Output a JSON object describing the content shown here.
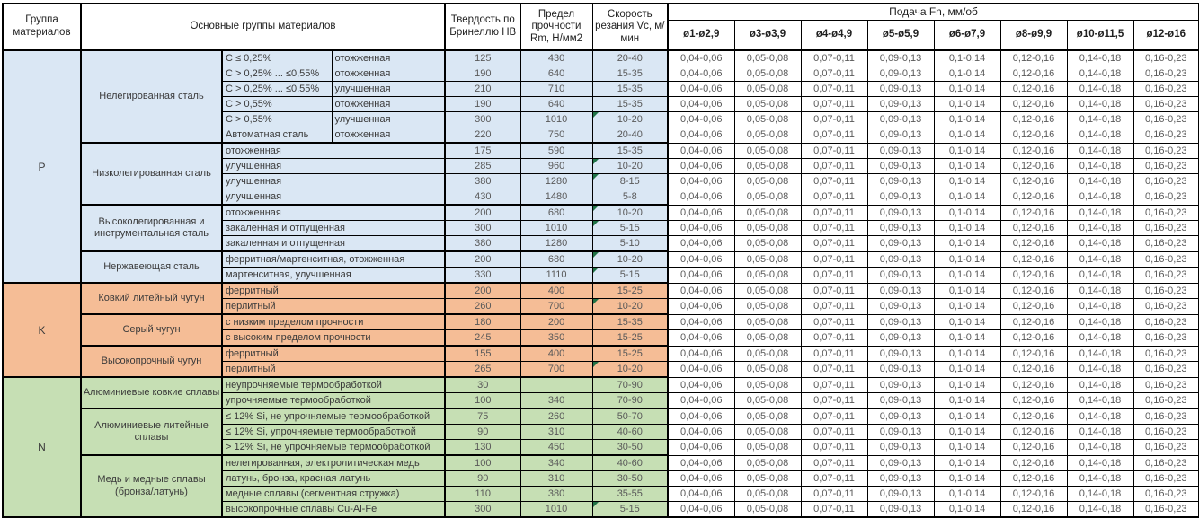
{
  "table": {
    "header": {
      "col_group": "Группа материалов",
      "col_main": "Основные группы материалов",
      "col_hb": "Твердость по Бринеллю HB",
      "col_rm": "Предел прочности Rm, Н/мм2",
      "col_vc": "Скорость резания Vc, м/мин",
      "feed_title": "Подача Fn, мм/об",
      "feed_cols": [
        "ø1-ø2,9",
        "ø3-ø3,9",
        "ø4-ø4,9",
        "ø5-ø5,9",
        "ø6-ø7,9",
        "ø8-ø9,9",
        "ø10-ø11,5",
        "ø12-ø16"
      ]
    },
    "feed_values": [
      "0,04-0,06",
      "0,05-0,08",
      "0,07-0,11",
      "0,09-0,13",
      "0,1-0,14",
      "0,12-0,16",
      "0,14-0,18",
      "0,16-0,23"
    ],
    "colors": {
      "group_p": "#dae7f4",
      "group_k": "#f5bd96",
      "group_n": "#c6dfb4",
      "marker": "#217346"
    },
    "groups": [
      {
        "code": "P",
        "color_key": "group_p",
        "subgroups": [
          {
            "name": "Нелегированная сталь",
            "rows": [
              {
                "a": "C ≤ 0,25%",
                "b": "отожженная",
                "hb": "125",
                "rm": "430",
                "vc": "20-40",
                "marker": false
              },
              {
                "a": "C > 0,25% ... ≤0,55%",
                "b": "отожженная",
                "hb": "190",
                "rm": "640",
                "vc": "15-35",
                "marker": false
              },
              {
                "a": "C > 0,25% ... ≤0,55%",
                "b": "улучшенная",
                "hb": "210",
                "rm": "710",
                "vc": "15-35",
                "marker": false
              },
              {
                "a": "C > 0,55%",
                "b": "отожженная",
                "hb": "190",
                "rm": "640",
                "vc": "15-35",
                "marker": false
              },
              {
                "a": "C > 0,55%",
                "b": "улучшенная",
                "hb": "300",
                "rm": "1010",
                "vc": "10-20",
                "marker": true
              },
              {
                "a": "Автоматная сталь",
                "b": "отожженная",
                "hb": "220",
                "rm": "750",
                "vc": "20-40",
                "marker": false
              }
            ]
          },
          {
            "name": "Низколегированная сталь",
            "rows": [
              {
                "a": "отожженная",
                "b": null,
                "hb": "175",
                "rm": "590",
                "vc": "15-35",
                "marker": false
              },
              {
                "a": "улучшенная",
                "b": null,
                "hb": "285",
                "rm": "960",
                "vc": "10-20",
                "marker": true
              },
              {
                "a": "улучшенная",
                "b": null,
                "hb": "380",
                "rm": "1280",
                "vc": "8-15",
                "marker": true
              },
              {
                "a": "улучшенная",
                "b": null,
                "hb": "430",
                "rm": "1480",
                "vc": "5-8",
                "marker": false
              }
            ]
          },
          {
            "name": "Высоколегированная и инструментальная сталь",
            "rows": [
              {
                "a": "отожженная",
                "b": null,
                "hb": "200",
                "rm": "680",
                "vc": "10-20",
                "marker": true
              },
              {
                "a": "закаленная и отпущенная",
                "b": null,
                "hb": "300",
                "rm": "1010",
                "vc": "5-15",
                "marker": true
              },
              {
                "a": "закаленная и отпущенная",
                "b": null,
                "hb": "380",
                "rm": "1280",
                "vc": "5-10",
                "marker": false
              }
            ]
          },
          {
            "name": "Нержавеющая сталь",
            "rows": [
              {
                "a": "ферритная/мартенситная, отожженная",
                "b": null,
                "hb": "200",
                "rm": "680",
                "vc": "10-20",
                "marker": true
              },
              {
                "a": "мартенситная, улучшенная",
                "b": null,
                "hb": "330",
                "rm": "1110",
                "vc": "5-15",
                "marker": true
              }
            ]
          }
        ]
      },
      {
        "code": "K",
        "color_key": "group_k",
        "subgroups": [
          {
            "name": "Ковкий литейный чугун",
            "rows": [
              {
                "a": "ферритный",
                "b": null,
                "hb": "200",
                "rm": "400",
                "vc": "15-25",
                "marker": false
              },
              {
                "a": "перлитный",
                "b": null,
                "hb": "260",
                "rm": "700",
                "vc": "10-20",
                "marker": true
              }
            ]
          },
          {
            "name": "Серый чугун",
            "rows": [
              {
                "a": "с низким пределом прочности",
                "b": null,
                "hb": "180",
                "rm": "200",
                "vc": "15-35",
                "marker": false
              },
              {
                "a": "с высоким пределом прочности",
                "b": null,
                "hb": "245",
                "rm": "350",
                "vc": "15-25",
                "marker": false
              }
            ]
          },
          {
            "name": "Высокопрочный чугун",
            "rows": [
              {
                "a": "ферритный",
                "b": null,
                "hb": "155",
                "rm": "400",
                "vc": "15-25",
                "marker": false
              },
              {
                "a": "перлитный",
                "b": null,
                "hb": "265",
                "rm": "700",
                "vc": "10-20",
                "marker": true
              }
            ]
          }
        ]
      },
      {
        "code": "N",
        "color_key": "group_n",
        "subgroups": [
          {
            "name": "Алюминиевые ковкие сплавы",
            "rows": [
              {
                "a": "неупрочняемые термообработкой",
                "b": null,
                "hb": "30",
                "rm": "",
                "vc": "70-90",
                "marker": false
              },
              {
                "a": "упрочняемые термообработкой",
                "b": null,
                "hb": "100",
                "rm": "340",
                "vc": "70-90",
                "marker": false
              }
            ]
          },
          {
            "name": "Алюминиевые литейные сплавы",
            "rows": [
              {
                "a": "≤ 12% Si, не упрочняемые термообработкой",
                "b": null,
                "hb": "75",
                "rm": "260",
                "vc": "50-70",
                "marker": false
              },
              {
                "a": "≤ 12% Si, упрочняемые термообработкой",
                "b": null,
                "hb": "90",
                "rm": "310",
                "vc": "40-60",
                "marker": false
              },
              {
                "a": "> 12% Si, не упрочняемые термообработкой",
                "b": null,
                "hb": "130",
                "rm": "450",
                "vc": "30-50",
                "marker": false
              }
            ]
          },
          {
            "name": "Медь и медные сплавы (бронза/латунь)",
            "rows": [
              {
                "a": "нелегированная, электролитическая медь",
                "b": null,
                "hb": "100",
                "rm": "340",
                "vc": "40-60",
                "marker": false
              },
              {
                "a": "латунь, бронза, красная латунь",
                "b": null,
                "hb": "90",
                "rm": "310",
                "vc": "30-50",
                "marker": false
              },
              {
                "a": "медные сплавы (сегментная стружка)",
                "b": null,
                "hb": "110",
                "rm": "380",
                "vc": "35-55",
                "marker": false
              },
              {
                "a": "высокопрочные сплавы Cu-Al-Fe",
                "b": null,
                "hb": "300",
                "rm": "1010",
                "vc": "5-15",
                "marker": true
              }
            ]
          }
        ]
      }
    ]
  }
}
